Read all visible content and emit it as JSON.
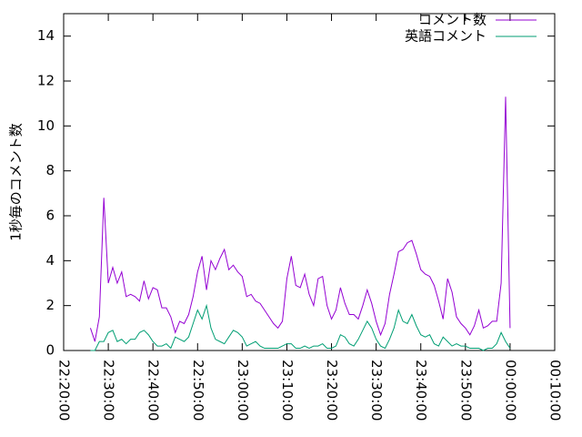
{
  "chart_data": {
    "type": "line",
    "ylabel": "1秒毎のコメント数",
    "x": [
      "22:26:00",
      "22:27:00",
      "22:28:00",
      "22:29:00",
      "22:30:00",
      "22:31:00",
      "22:32:00",
      "22:33:00",
      "22:34:00",
      "22:35:00",
      "22:36:00",
      "22:37:00",
      "22:38:00",
      "22:39:00",
      "22:40:00",
      "22:41:00",
      "22:42:00",
      "22:43:00",
      "22:44:00",
      "22:45:00",
      "22:46:00",
      "22:47:00",
      "22:48:00",
      "22:49:00",
      "22:50:00",
      "22:51:00",
      "22:52:00",
      "22:53:00",
      "22:54:00",
      "22:55:00",
      "22:56:00",
      "22:57:00",
      "22:58:00",
      "22:59:00",
      "23:00:00",
      "23:01:00",
      "23:02:00",
      "23:03:00",
      "23:04:00",
      "23:05:00",
      "23:06:00",
      "23:07:00",
      "23:08:00",
      "23:09:00",
      "23:10:00",
      "23:11:00",
      "23:12:00",
      "23:13:00",
      "23:14:00",
      "23:15:00",
      "23:16:00",
      "23:17:00",
      "23:18:00",
      "23:19:00",
      "23:20:00",
      "23:21:00",
      "23:22:00",
      "23:23:00",
      "23:24:00",
      "23:25:00",
      "23:26:00",
      "23:27:00",
      "23:28:00",
      "23:29:00",
      "23:30:00",
      "23:31:00",
      "23:32:00",
      "23:33:00",
      "23:34:00",
      "23:35:00",
      "23:36:00",
      "23:37:00",
      "23:38:00",
      "23:39:00",
      "23:40:00",
      "23:41:00",
      "23:42:00",
      "23:43:00",
      "23:44:00",
      "23:45:00",
      "23:46:00",
      "23:47:00",
      "23:48:00",
      "23:49:00",
      "23:50:00",
      "23:51:00",
      "23:52:00",
      "23:53:00",
      "23:54:00",
      "23:55:00",
      "23:56:00",
      "23:57:00",
      "23:58:00",
      "23:59:00",
      "00:00:00"
    ],
    "series": [
      {
        "name": "コメント数",
        "color": "#9400d3",
        "values": [
          1.0,
          0.4,
          1.5,
          6.8,
          3.0,
          3.7,
          3.0,
          3.5,
          2.4,
          2.5,
          2.4,
          2.2,
          3.1,
          2.3,
          2.8,
          2.7,
          1.9,
          1.9,
          1.5,
          0.8,
          1.3,
          1.2,
          1.6,
          2.4,
          3.5,
          4.2,
          2.7,
          4.0,
          3.6,
          4.1,
          4.5,
          3.6,
          3.8,
          3.5,
          3.3,
          2.4,
          2.5,
          2.2,
          2.1,
          1.8,
          1.5,
          1.2,
          1.0,
          1.3,
          3.2,
          4.2,
          2.9,
          2.8,
          3.4,
          2.5,
          2.0,
          3.2,
          3.3,
          2.0,
          1.4,
          1.8,
          2.8,
          2.1,
          1.6,
          1.6,
          1.4,
          2.0,
          2.7,
          2.1,
          1.3,
          0.7,
          1.2,
          2.5,
          3.4,
          4.4,
          4.5,
          4.8,
          4.9,
          4.3,
          3.6,
          3.4,
          3.3,
          2.9,
          2.2,
          1.4,
          3.2,
          2.6,
          1.5,
          1.2,
          1.0,
          0.7,
          1.1,
          1.8,
          1.0,
          1.1,
          1.3,
          1.3,
          3.0,
          11.3,
          1.0
        ]
      },
      {
        "name": "英語コメント",
        "color": "#009e73",
        "values": [
          0.0,
          0.0,
          0.4,
          0.4,
          0.8,
          0.9,
          0.4,
          0.5,
          0.3,
          0.5,
          0.5,
          0.8,
          0.9,
          0.7,
          0.4,
          0.2,
          0.2,
          0.3,
          0.1,
          0.6,
          0.5,
          0.4,
          0.6,
          1.2,
          1.8,
          1.4,
          2.0,
          1.0,
          0.5,
          0.4,
          0.3,
          0.6,
          0.9,
          0.8,
          0.6,
          0.2,
          0.3,
          0.4,
          0.2,
          0.1,
          0.1,
          0.1,
          0.1,
          0.2,
          0.3,
          0.3,
          0.1,
          0.1,
          0.2,
          0.1,
          0.2,
          0.2,
          0.3,
          0.1,
          0.1,
          0.2,
          0.7,
          0.6,
          0.3,
          0.2,
          0.5,
          0.9,
          1.3,
          1.0,
          0.5,
          0.2,
          0.1,
          0.5,
          1.0,
          1.8,
          1.3,
          1.2,
          1.6,
          1.1,
          0.7,
          0.6,
          0.7,
          0.3,
          0.2,
          0.6,
          0.4,
          0.2,
          0.3,
          0.2,
          0.2,
          0.1,
          0.1,
          0.1,
          0.0,
          0.1,
          0.1,
          0.3,
          0.8,
          0.4,
          0.1
        ]
      }
    ],
    "xlim": [
      "22:20:00",
      "00:10:00"
    ],
    "xticks": [
      "22:20:00",
      "22:30:00",
      "22:40:00",
      "22:50:00",
      "23:00:00",
      "23:10:00",
      "23:20:00",
      "23:30:00",
      "23:40:00",
      "23:50:00",
      "00:00:00",
      "00:10:00"
    ],
    "ylim": [
      0,
      15
    ],
    "yticks": [
      0,
      2,
      4,
      6,
      8,
      10,
      12,
      14
    ],
    "legend": "upper right"
  }
}
